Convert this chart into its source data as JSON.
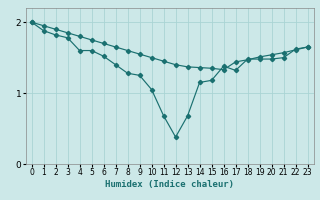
{
  "xlabel": "Humidex (Indice chaleur)",
  "xlim": [
    -0.5,
    23.5
  ],
  "ylim": [
    0,
    2.2
  ],
  "xticks": [
    0,
    1,
    2,
    3,
    4,
    5,
    6,
    7,
    8,
    9,
    10,
    11,
    12,
    13,
    14,
    15,
    16,
    17,
    18,
    19,
    20,
    21,
    22,
    23
  ],
  "yticks": [
    0,
    1,
    2
  ],
  "bg_color": "#cce8e8",
  "line_color": "#1a7070",
  "grid_color": "#aad4d4",
  "line1_x": [
    0,
    1,
    2,
    3,
    4,
    5,
    6,
    7,
    8,
    9,
    10,
    11,
    12,
    13,
    14,
    15,
    16,
    17,
    18,
    19,
    20,
    21,
    22,
    23
  ],
  "line1_y": [
    2.0,
    1.88,
    1.82,
    1.78,
    1.6,
    1.6,
    1.52,
    1.4,
    1.28,
    1.25,
    1.05,
    0.68,
    0.38,
    0.68,
    1.15,
    1.18,
    1.38,
    1.32,
    1.48,
    1.48,
    1.48,
    1.5,
    1.62,
    1.65
  ],
  "line2_x": [
    0,
    1,
    2,
    3,
    4,
    5,
    6,
    7,
    8,
    9,
    10,
    11,
    12,
    13,
    14,
    15,
    16,
    17,
    18,
    19,
    20,
    21,
    22,
    23
  ],
  "line2_y": [
    2.0,
    1.95,
    1.9,
    1.85,
    1.8,
    1.75,
    1.7,
    1.65,
    1.6,
    1.55,
    1.5,
    1.45,
    1.4,
    1.37,
    1.36,
    1.35,
    1.33,
    1.44,
    1.47,
    1.51,
    1.54,
    1.57,
    1.61,
    1.65
  ]
}
